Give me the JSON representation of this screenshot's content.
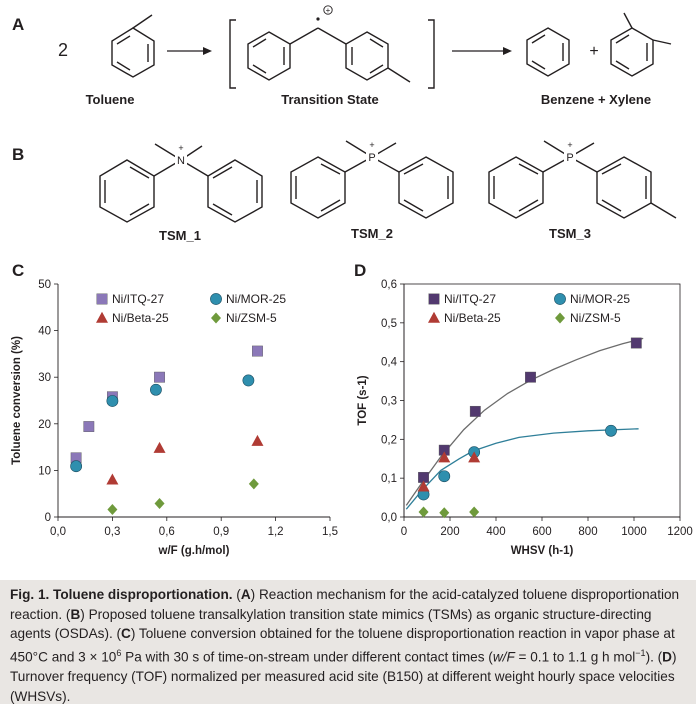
{
  "panel_a": {
    "letter": "A",
    "coefficient": "2",
    "charge": "+",
    "plus": "+",
    "labels": {
      "toluene": "Toluene",
      "transition_state": "Transition State",
      "products": "Benzene + Xylene"
    }
  },
  "panel_b": {
    "letter": "B",
    "charge": "+",
    "atoms": {
      "tsm1": "N",
      "tsm2": "P",
      "tsm3": "P"
    },
    "labels": {
      "tsm1": "TSM_1",
      "tsm2": "TSM_2",
      "tsm3": "TSM_3"
    }
  },
  "chart_data": [
    {
      "panel": "C",
      "type": "scatter",
      "xlabel": "w/F (g.h/mol)",
      "ylabel": "Toluene conversion (%)",
      "xlim": [
        0,
        1.5
      ],
      "ylim": [
        0,
        50
      ],
      "xticks": [
        "0,0",
        "0,3",
        "0,6",
        "0,9",
        "1,2",
        "1,5"
      ],
      "yticks": [
        "0",
        "10",
        "20",
        "30",
        "40",
        "50"
      ],
      "legend": "top, two columns",
      "series": [
        {
          "name": "Ni/ITQ-27",
          "marker": "square",
          "color": "#8b78b8",
          "points": [
            [
              0.1,
              12.7
            ],
            [
              0.17,
              19.4
            ],
            [
              0.3,
              25.8
            ],
            [
              0.56,
              30.0
            ],
            [
              1.1,
              35.6
            ]
          ]
        },
        {
          "name": "Ni/MOR-25",
          "marker": "circle",
          "color": "#2f8fae",
          "points": [
            [
              0.1,
              10.9
            ],
            [
              0.3,
              24.9
            ],
            [
              0.54,
              27.3
            ],
            [
              1.05,
              29.3
            ]
          ]
        },
        {
          "name": "Ni/Beta-25",
          "marker": "triangle",
          "color": "#b03b34",
          "points": [
            [
              0.3,
              8.0
            ],
            [
              0.56,
              14.8
            ],
            [
              1.1,
              16.3
            ]
          ]
        },
        {
          "name": "Ni/ZSM-5",
          "marker": "diamond",
          "color": "#6f9a3c",
          "points": [
            [
              0.3,
              1.6
            ],
            [
              0.56,
              2.9
            ],
            [
              1.08,
              7.1
            ]
          ]
        }
      ]
    },
    {
      "panel": "D",
      "type": "scatter",
      "xlabel": "WHSV (h-1)",
      "ylabel": "TOF (s-1)",
      "xlim": [
        0,
        1200
      ],
      "ylim": [
        0,
        0.6
      ],
      "xticks": [
        "0",
        "200",
        "400",
        "600",
        "800",
        "1000",
        "1200"
      ],
      "yticks": [
        "0,0",
        "0,1",
        "0,2",
        "0,3",
        "0,4",
        "0,5",
        "0,6"
      ],
      "legend": "top, two columns",
      "series": [
        {
          "name": "Ni/ITQ-27",
          "marker": "square",
          "color": "#52396f",
          "points": [
            [
              85,
              0.102
            ],
            [
              175,
              0.172
            ],
            [
              310,
              0.272
            ],
            [
              550,
              0.36
            ],
            [
              1010,
              0.448
            ]
          ],
          "fit": [
            [
              10,
              0.03
            ],
            [
              80,
              0.09
            ],
            [
              160,
              0.155
            ],
            [
              260,
              0.225
            ],
            [
              350,
              0.275
            ],
            [
              450,
              0.318
            ],
            [
              550,
              0.352
            ],
            [
              650,
              0.38
            ],
            [
              750,
              0.405
            ],
            [
              850,
              0.428
            ],
            [
              950,
              0.446
            ],
            [
              1040,
              0.46
            ]
          ]
        },
        {
          "name": "Ni/MOR-25",
          "marker": "circle",
          "color": "#2f8fae",
          "points": [
            [
              85,
              0.058
            ],
            [
              175,
              0.105
            ],
            [
              305,
              0.167
            ],
            [
              900,
              0.222
            ]
          ],
          "fit": [
            [
              10,
              0.02
            ],
            [
              80,
              0.07
            ],
            [
              160,
              0.12
            ],
            [
              240,
              0.15
            ],
            [
              300,
              0.17
            ],
            [
              400,
              0.19
            ],
            [
              500,
              0.205
            ],
            [
              650,
              0.216
            ],
            [
              800,
              0.222
            ],
            [
              1020,
              0.227
            ]
          ]
        },
        {
          "name": "Ni/Beta-25",
          "marker": "triangle",
          "color": "#b03b34",
          "points": [
            [
              85,
              0.078
            ],
            [
              175,
              0.153
            ],
            [
              305,
              0.153
            ]
          ]
        },
        {
          "name": "Ni/ZSM-5",
          "marker": "diamond",
          "color": "#6f9a3c",
          "points": [
            [
              85,
              0.013
            ],
            [
              175,
              0.011
            ],
            [
              305,
              0.013
            ]
          ]
        }
      ]
    }
  ],
  "caption": {
    "fig_label": "Fig. 1. Toluene disproportionation.",
    "t1": " (",
    "a": "A",
    "t2": ") Reaction mechanism for the acid-catalyzed toluene disproportionation reaction. (",
    "b": "B",
    "t3": ") Proposed toluene transalkylation transition state mimics (TSMs) as organic structure-directing agents (OSDAs). (",
    "c": "C",
    "t4": ") Toluene conversion obtained for the toluene disproportionation reaction in vapor phase at 450°C and 3 × 10",
    "sup6": "6",
    "t5": " Pa with 30 s of time-on-stream under different contact times (",
    "wf": "w/F",
    "t6": " = 0.1 to 1.1 g h mol",
    "supm1": "−1",
    "t7": "). (",
    "d": "D",
    "t8": ") Turnover frequency (TOF) normalized per measured acid site (B150) at different weight hourly space velocities (WHSVs)."
  }
}
